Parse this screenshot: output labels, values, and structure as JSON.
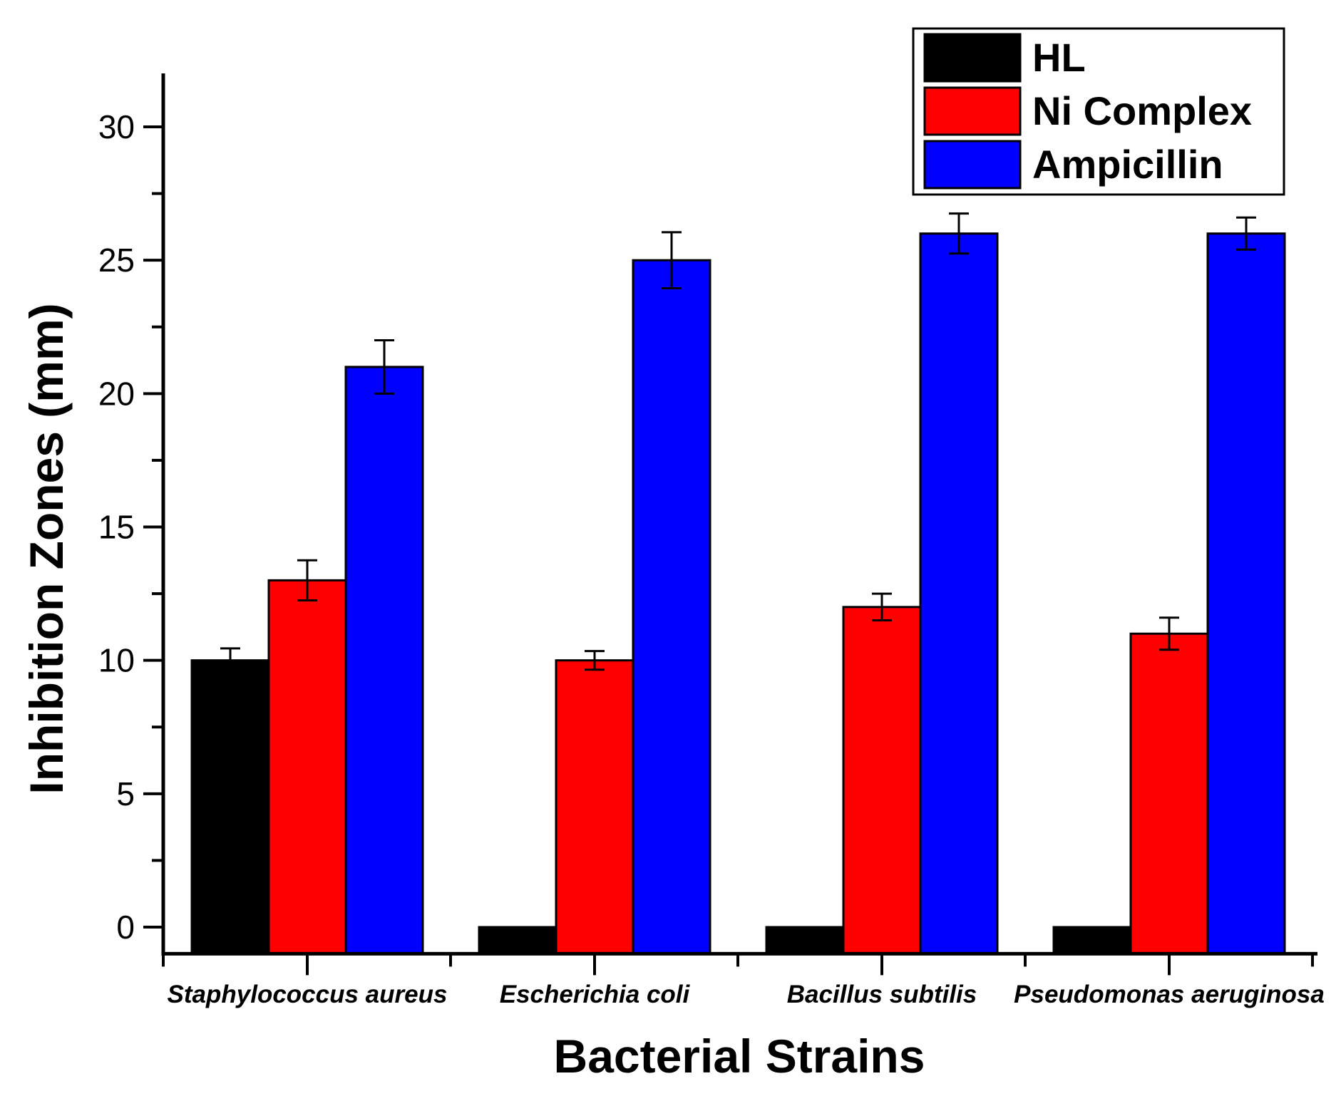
{
  "chart_data": {
    "type": "bar",
    "title": "",
    "xlabel": "Bacterial Strains",
    "ylabel": "Inhibition Zones (mm)",
    "ylim": [
      -1,
      32
    ],
    "yticks": [
      0,
      5,
      10,
      15,
      20,
      25,
      30
    ],
    "categories": [
      "Staphylococcus aureus",
      "Escherichia coli",
      "Bacillus subtilis",
      "Pseudomonas aeruginosa"
    ],
    "series": [
      {
        "name": "HL",
        "color": "#000000",
        "values": [
          10,
          0,
          0,
          0
        ],
        "errors": [
          0.45,
          0,
          0,
          0
        ]
      },
      {
        "name": "Ni Complex",
        "color": "#ff0000",
        "values": [
          13,
          10,
          12,
          11
        ],
        "errors": [
          0.75,
          0.35,
          0.5,
          0.6
        ]
      },
      {
        "name": "Ampicillin",
        "color": "#0000ff",
        "values": [
          21,
          25,
          26,
          26
        ],
        "errors": [
          1.0,
          1.05,
          0.75,
          0.6
        ]
      }
    ],
    "legend_position": "top-right",
    "grid": false
  }
}
